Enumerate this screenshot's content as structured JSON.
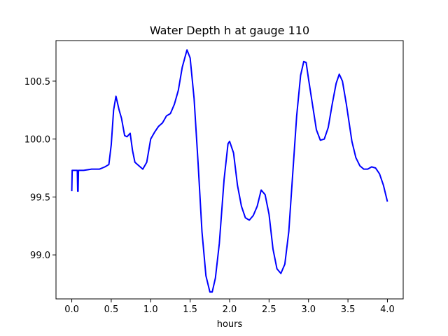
{
  "chart_data": {
    "type": "line",
    "title": "Water Depth h at gauge 110",
    "xlabel": "hours",
    "ylabel": "",
    "xlim": [
      -0.2,
      4.2
    ],
    "ylim": [
      98.62,
      100.85
    ],
    "grid": false,
    "x_ticks": [
      0.0,
      0.5,
      1.0,
      1.5,
      2.0,
      2.5,
      3.0,
      3.5,
      4.0
    ],
    "x_tick_labels": [
      "0.0",
      "0.5",
      "1.0",
      "1.5",
      "2.0",
      "2.5",
      "3.0",
      "3.5",
      "4.0"
    ],
    "y_ticks": [
      99.0,
      99.5,
      100.0,
      100.5
    ],
    "y_tick_labels": [
      "99.0",
      "99.5",
      "100.0",
      "100.5"
    ],
    "series": [
      {
        "color": "#0000ff",
        "points": [
          [
            0.0,
            99.55
          ],
          [
            0.005,
            99.73
          ],
          [
            0.07,
            99.73
          ],
          [
            0.075,
            99.55
          ],
          [
            0.08,
            99.55
          ],
          [
            0.085,
            99.73
          ],
          [
            0.15,
            99.73
          ],
          [
            0.25,
            99.74
          ],
          [
            0.35,
            99.74
          ],
          [
            0.42,
            99.76
          ],
          [
            0.47,
            99.78
          ],
          [
            0.5,
            99.95
          ],
          [
            0.53,
            100.25
          ],
          [
            0.56,
            100.37
          ],
          [
            0.6,
            100.25
          ],
          [
            0.63,
            100.18
          ],
          [
            0.67,
            100.03
          ],
          [
            0.7,
            100.02
          ],
          [
            0.74,
            100.05
          ],
          [
            0.77,
            99.9
          ],
          [
            0.8,
            99.8
          ],
          [
            0.85,
            99.77
          ],
          [
            0.9,
            99.74
          ],
          [
            0.95,
            99.8
          ],
          [
            1.0,
            100.0
          ],
          [
            1.05,
            100.06
          ],
          [
            1.1,
            100.11
          ],
          [
            1.15,
            100.14
          ],
          [
            1.2,
            100.2
          ],
          [
            1.25,
            100.22
          ],
          [
            1.3,
            100.3
          ],
          [
            1.35,
            100.42
          ],
          [
            1.4,
            100.62
          ],
          [
            1.46,
            100.77
          ],
          [
            1.5,
            100.7
          ],
          [
            1.55,
            100.35
          ],
          [
            1.6,
            99.8
          ],
          [
            1.65,
            99.2
          ],
          [
            1.7,
            98.82
          ],
          [
            1.75,
            98.68
          ],
          [
            1.78,
            98.68
          ],
          [
            1.82,
            98.8
          ],
          [
            1.87,
            99.1
          ],
          [
            1.93,
            99.65
          ],
          [
            1.98,
            99.96
          ],
          [
            2.0,
            99.98
          ],
          [
            2.05,
            99.88
          ],
          [
            2.1,
            99.6
          ],
          [
            2.15,
            99.42
          ],
          [
            2.2,
            99.32
          ],
          [
            2.25,
            99.3
          ],
          [
            2.3,
            99.34
          ],
          [
            2.35,
            99.42
          ],
          [
            2.4,
            99.56
          ],
          [
            2.45,
            99.52
          ],
          [
            2.5,
            99.35
          ],
          [
            2.55,
            99.05
          ],
          [
            2.6,
            98.88
          ],
          [
            2.65,
            98.84
          ],
          [
            2.7,
            98.92
          ],
          [
            2.75,
            99.2
          ],
          [
            2.8,
            99.7
          ],
          [
            2.85,
            100.2
          ],
          [
            2.9,
            100.55
          ],
          [
            2.94,
            100.67
          ],
          [
            2.97,
            100.66
          ],
          [
            3.0,
            100.52
          ],
          [
            3.05,
            100.3
          ],
          [
            3.1,
            100.08
          ],
          [
            3.15,
            99.99
          ],
          [
            3.2,
            100.0
          ],
          [
            3.25,
            100.1
          ],
          [
            3.3,
            100.3
          ],
          [
            3.35,
            100.48
          ],
          [
            3.39,
            100.56
          ],
          [
            3.43,
            100.5
          ],
          [
            3.48,
            100.3
          ],
          [
            3.55,
            99.98
          ],
          [
            3.6,
            99.84
          ],
          [
            3.65,
            99.77
          ],
          [
            3.7,
            99.74
          ],
          [
            3.75,
            99.74
          ],
          [
            3.8,
            99.76
          ],
          [
            3.85,
            99.75
          ],
          [
            3.9,
            99.7
          ],
          [
            3.95,
            99.6
          ],
          [
            4.0,
            99.46
          ]
        ]
      }
    ]
  }
}
